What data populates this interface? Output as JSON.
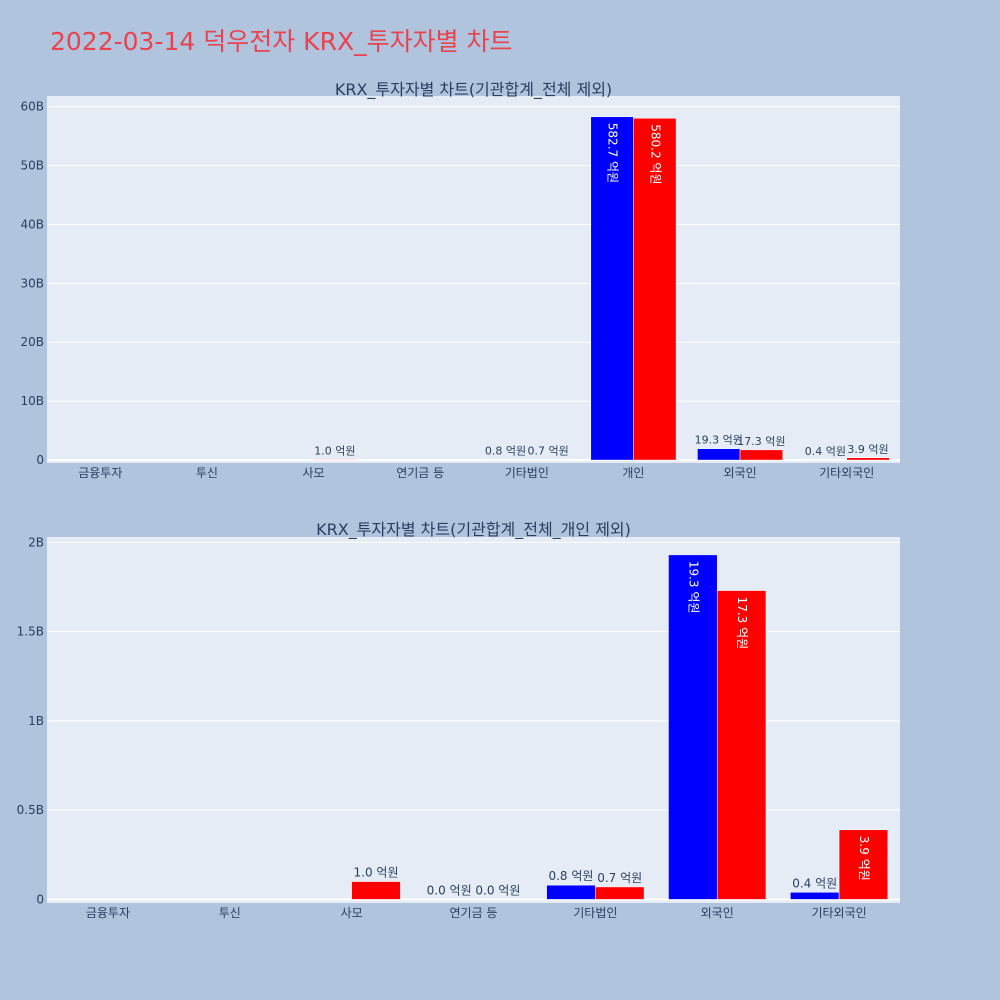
{
  "page": {
    "title": "2022-03-14 덕우전자 KRX_투자자별 차트"
  },
  "colors": {
    "background": "#b0c4de",
    "plot_bg": "#e5ecf6",
    "series_a": "#0000ff",
    "series_b": "#ff0000",
    "title": "#e8434f",
    "text": "#2a3f5f"
  },
  "chart_data": [
    {
      "type": "bar",
      "title": "KRX_투자자별 차트(기관합계_전체 제외)",
      "categories": [
        "금융투자",
        "투신",
        "사모",
        "연기금 등",
        "기타법인",
        "개인",
        "외국인",
        "기타외국인"
      ],
      "series": [
        {
          "color": "#0000ff",
          "values": [
            0,
            0,
            0,
            0,
            80000000,
            58270000000,
            1930000000,
            40000000
          ],
          "labels": [
            "",
            "",
            "",
            "",
            "0.8 억원",
            "582.7 억원",
            "19.3 억원",
            "0.4 억원"
          ]
        },
        {
          "color": "#ff0000",
          "values": [
            0,
            0,
            100000000,
            0,
            70000000,
            58020000000,
            1730000000,
            390000000
          ],
          "labels": [
            "",
            "",
            "1.0 억원",
            "",
            "0.7 억원",
            "580.2 억원",
            "17.3 억원",
            "3.9 억원"
          ]
        }
      ],
      "yticks": [
        0,
        10000000000,
        20000000000,
        30000000000,
        40000000000,
        50000000000,
        60000000000
      ],
      "ytick_labels": [
        "0",
        "10B",
        "20B",
        "30B",
        "40B",
        "50B",
        "60B"
      ],
      "ylim": [
        -500000000,
        61800000000
      ],
      "grid": true
    },
    {
      "type": "bar",
      "title": "KRX_투자자별 차트(기관합계_전체_개인 제외)",
      "categories": [
        "금융투자",
        "투신",
        "사모",
        "연기금 등",
        "기타법인",
        "외국인",
        "기타외국인"
      ],
      "series": [
        {
          "color": "#0000ff",
          "values": [
            0,
            0,
            0,
            0,
            80000000,
            1930000000,
            40000000
          ],
          "labels": [
            "",
            "",
            "",
            "0.0 억원",
            "0.8 억원",
            "19.3 억원",
            "0.4 억원"
          ]
        },
        {
          "color": "#ff0000",
          "values": [
            0,
            0,
            100000000,
            0,
            70000000,
            1730000000,
            390000000
          ],
          "labels": [
            "",
            "",
            "1.0 억원",
            "0.0 억원",
            "0.7 억원",
            "17.3 억원",
            "3.9 억원"
          ]
        }
      ],
      "yticks": [
        0,
        500000000,
        1000000000,
        1500000000,
        2000000000
      ],
      "ytick_labels": [
        "0",
        "0.5B",
        "1B",
        "1.5B",
        "2B"
      ],
      "ylim": [
        -20000000,
        2030000000
      ],
      "grid": true
    }
  ]
}
